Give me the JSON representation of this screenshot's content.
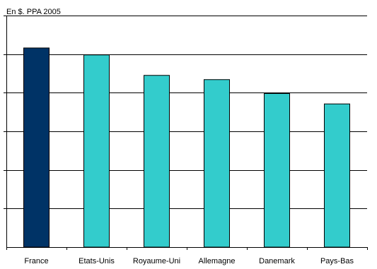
{
  "chart_data": {
    "type": "bar",
    "title": "",
    "unit_label": "En $. PPA 2005",
    "xlabel": "",
    "ylabel": "",
    "categories": [
      "France",
      "Etats-Unis",
      "Royaume-Uni",
      "Allemagne",
      "Danemark",
      "Pays-Bas"
    ],
    "values": [
      51.6,
      49.8,
      44.5,
      43.4,
      39.8,
      37.1
    ],
    "ylim": [
      0,
      60
    ],
    "y_major_step": 10,
    "y_tick_labels_shown": false,
    "grid": true,
    "legend": "none",
    "colors": {
      "highlight": "#003366",
      "default": "#33cccc",
      "grid": "#000000",
      "bar_outline": "#000000"
    },
    "highlight_categories": [
      "France"
    ]
  }
}
